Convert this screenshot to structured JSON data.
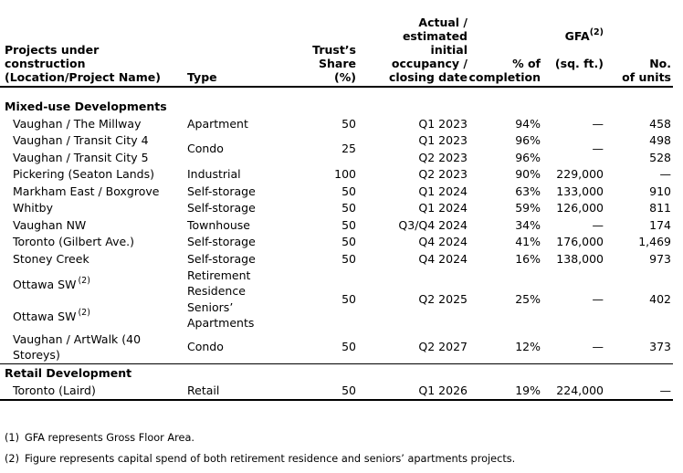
{
  "header": {
    "col_projects": "Projects under\nconstruction\n(Location/Project Name)",
    "col_type": "Type",
    "col_share": "Trust’s\nShare\n(%)",
    "col_occupancy": "Actual /\nestimated\ninitial\noccupancy /\nclosing date",
    "col_completion": "% of\ncompletion",
    "col_gfa_label": "GFA",
    "col_gfa_sup": "(2)",
    "col_gfa_unit": "(sq. ft.)",
    "col_units": "No.\nof units"
  },
  "sections": {
    "mixed_use_label": "Mixed-use Developments",
    "retail_label": "Retail Development"
  },
  "rows": {
    "millway": {
      "name": "Vaughan / The Millway",
      "type": "Apartment",
      "share": "50",
      "date": "Q1 2023",
      "completion": "94%",
      "gfa": "—",
      "units": "458"
    },
    "tc4": {
      "name": "Vaughan / Transit City 4",
      "date": "Q1 2023",
      "completion": "96%",
      "units": "498"
    },
    "tc_merged": {
      "type": "Condo",
      "share": "25",
      "gfa": "—"
    },
    "tc5": {
      "name": "Vaughan / Transit City 5",
      "date": "Q2 2023",
      "completion": "96%",
      "units": "528"
    },
    "pickering": {
      "name": "Pickering (Seaton Lands)",
      "type": "Industrial",
      "share": "100",
      "date": "Q2 2023",
      "completion": "90%",
      "gfa": "229,000",
      "units": "—"
    },
    "markham": {
      "name": "Markham East / Boxgrove",
      "type": "Self-storage",
      "share": "50",
      "date": "Q1 2024",
      "completion": "63%",
      "gfa": "133,000",
      "units": "910"
    },
    "whitby": {
      "name": "Whitby",
      "type": "Self-storage",
      "share": "50",
      "date": "Q1 2024",
      "completion": "59%",
      "gfa": "126,000",
      "units": "811"
    },
    "vaughan_nw": {
      "name": "Vaughan NW",
      "type": "Townhouse",
      "share": "50",
      "date": "Q3/Q4 2024",
      "completion": "34%",
      "gfa": "—",
      "units": "174"
    },
    "gilbert": {
      "name": "Toronto (Gilbert Ave.)",
      "type": "Self-storage",
      "share": "50",
      "date": "Q4 2024",
      "completion": "41%",
      "gfa": "176,000",
      "units": "1,469"
    },
    "stoney": {
      "name": "Stoney Creek",
      "type": "Self-storage",
      "share": "50",
      "date": "Q4 2024",
      "completion": "16%",
      "gfa": "138,000",
      "units": "973"
    },
    "ottawa_a": {
      "name": "Ottawa SW",
      "name_sup": "(2)",
      "type": "Retirement Residence"
    },
    "ottawa_merged": {
      "share": "50",
      "date": "Q2 2025",
      "completion": "25%",
      "gfa": "—",
      "units": "402"
    },
    "ottawa_b": {
      "name": "Ottawa SW",
      "name_sup": "(2)",
      "type": "Seniors’ Apartments"
    },
    "artwalk": {
      "name": "Vaughan / ArtWalk (40 Storeys)",
      "type": "Condo",
      "share": "50",
      "date": "Q2 2027",
      "completion": "12%",
      "gfa": "—",
      "units": "373"
    },
    "laird": {
      "name": "Toronto (Laird)",
      "type": "Retail",
      "share": "50",
      "date": "Q1 2026",
      "completion": "19%",
      "gfa": "224,000",
      "units": "—"
    }
  },
  "footnotes": [
    {
      "marker": "(1)",
      "text": "GFA represents Gross Floor Area."
    },
    {
      "marker": "(2)",
      "text": "Figure represents capital spend of both retirement residence and seniors’ apartments projects."
    }
  ]
}
